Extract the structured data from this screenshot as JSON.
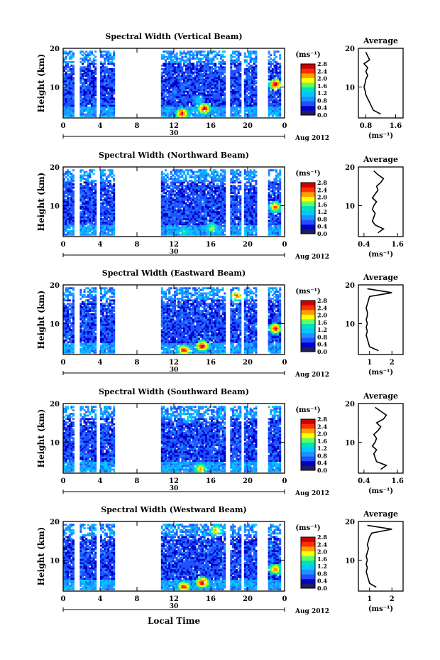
{
  "x_axis_label": "Local Time",
  "date_label": "Aug 2012",
  "colorbar_unit": "(ms⁻¹)",
  "colorbar_ticks": [
    "0.0",
    "0.4",
    "0.8",
    "1.2",
    "1.6",
    "2.0",
    "2.4",
    "2.8"
  ],
  "colors": {
    "colormap": [
      "#1e1e5a",
      "#0000c8",
      "#2050ff",
      "#1e90ff",
      "#00c8ff",
      "#00e0c0",
      "#60ff60",
      "#ffff00",
      "#ffa000",
      "#ff3000",
      "#d00000"
    ],
    "profile_line": "#000000"
  },
  "chart_data": [
    {
      "type": "heatmap",
      "title": "Spectral Width (Vertical Beam)",
      "ylabel": "Height (km)",
      "xlabel": "Local Time",
      "x_ticks": [
        "0",
        "4",
        "8",
        "12",
        "16",
        "20",
        "0"
      ],
      "y_ticks": [
        "10",
        "20"
      ],
      "date_tick": "30",
      "xlim": [
        0,
        24
      ],
      "ylim": [
        2,
        20
      ],
      "colorbar": {
        "label": "(ms⁻¹)",
        "range": [
          0,
          2.8
        ],
        "ticks": [
          "0.0",
          "0.4",
          "0.8",
          "1.2",
          "1.6",
          "2.0",
          "2.4",
          "2.8"
        ]
      },
      "data_intervals": [
        [
          0,
          1.2
        ],
        [
          1.8,
          3.6
        ],
        [
          4.0,
          5.6
        ],
        [
          10.6,
          17.6
        ],
        [
          18.1,
          19.3
        ],
        [
          19.6,
          21.0
        ],
        [
          22.2,
          23.6
        ]
      ],
      "enhanced_regions": [
        {
          "t": 12.8,
          "h": 3.0,
          "level": 2.6
        },
        {
          "t": 15.2,
          "h": 4.2,
          "level": 2.8
        },
        {
          "t": 22.9,
          "h": 10.5,
          "level": 2.8
        },
        {
          "t": 14.6,
          "h": 6.5,
          "level": 1.2
        }
      ],
      "average_profile": {
        "title": "Average",
        "xlabel": "(ms⁻¹)",
        "x_ticks": [
          "0.8",
          "1.6"
        ],
        "xlim": [
          0.6,
          1.8
        ],
        "y_ticks": [
          "10",
          "20"
        ],
        "height_km": [
          3,
          4,
          5,
          6,
          7,
          8,
          9,
          10,
          11,
          12,
          13,
          14,
          15,
          16,
          17,
          18,
          19
        ],
        "width_ms": [
          1.2,
          1.0,
          0.95,
          0.9,
          0.85,
          0.8,
          0.78,
          0.75,
          0.78,
          0.8,
          0.85,
          0.8,
          0.85,
          0.75,
          0.9,
          0.85,
          0.8
        ]
      }
    },
    {
      "type": "heatmap",
      "title": "Spectral Width (Northward Beam)",
      "ylabel": "Height (km)",
      "xlabel": "Local Time",
      "x_ticks": [
        "0",
        "4",
        "8",
        "12",
        "16",
        "20",
        "0"
      ],
      "y_ticks": [
        "10",
        "20"
      ],
      "date_tick": "30",
      "xlim": [
        0,
        24
      ],
      "ylim": [
        2,
        20
      ],
      "colorbar": {
        "label": "(ms⁻¹)",
        "range": [
          0,
          2.8
        ],
        "ticks": [
          "0.0",
          "0.4",
          "0.8",
          "1.2",
          "1.6",
          "2.0",
          "2.4",
          "2.8"
        ]
      },
      "data_intervals": [
        [
          0,
          1.2
        ],
        [
          1.8,
          3.6
        ],
        [
          4.0,
          5.6
        ],
        [
          10.6,
          17.6
        ],
        [
          18.1,
          19.3
        ],
        [
          19.6,
          21.0
        ],
        [
          22.2,
          23.6
        ]
      ],
      "enhanced_regions": [
        {
          "t": 13.0,
          "h": 3.2,
          "level": 1.6
        },
        {
          "t": 16.0,
          "h": 4.0,
          "level": 2.0
        },
        {
          "t": 22.9,
          "h": 9.5,
          "level": 2.4
        }
      ],
      "average_profile": {
        "title": "Average",
        "xlabel": "(ms⁻¹)",
        "x_ticks": [
          "0.4",
          "1.6"
        ],
        "xlim": [
          0.2,
          1.8
        ],
        "y_ticks": [
          "10",
          "20"
        ],
        "height_km": [
          3,
          4,
          5,
          6,
          7,
          8,
          9,
          10,
          11,
          12,
          13,
          14,
          15,
          16,
          17,
          18,
          19
        ],
        "width_ms": [
          0.9,
          1.1,
          0.8,
          0.7,
          0.75,
          0.8,
          0.7,
          0.75,
          0.85,
          0.7,
          0.8,
          0.9,
          0.85,
          1.0,
          1.1,
          0.9,
          0.75
        ]
      }
    },
    {
      "type": "heatmap",
      "title": "Spectral Width (Eastward Beam)",
      "ylabel": "Height (km)",
      "xlabel": "Local Time",
      "x_ticks": [
        "0",
        "4",
        "8",
        "12",
        "16",
        "20",
        "0"
      ],
      "y_ticks": [
        "10",
        "20"
      ],
      "date_tick": "30",
      "xlim": [
        0,
        24
      ],
      "ylim": [
        2,
        20
      ],
      "colorbar": {
        "label": "(ms⁻¹)",
        "range": [
          0,
          2.8
        ],
        "ticks": [
          "0.0",
          "0.4",
          "0.8",
          "1.2",
          "1.6",
          "2.0",
          "2.4",
          "2.8"
        ]
      },
      "data_intervals": [
        [
          0,
          1.2
        ],
        [
          1.8,
          3.6
        ],
        [
          4.0,
          5.6
        ],
        [
          10.6,
          17.6
        ],
        [
          18.1,
          19.3
        ],
        [
          19.6,
          21.0
        ],
        [
          22.2,
          23.6
        ]
      ],
      "enhanced_regions": [
        {
          "t": 13.0,
          "h": 3.0,
          "level": 2.6
        },
        {
          "t": 15.0,
          "h": 4.0,
          "level": 2.8
        },
        {
          "t": 22.9,
          "h": 8.5,
          "level": 2.6
        },
        {
          "t": 18.7,
          "h": 17.0,
          "level": 2.4
        }
      ],
      "average_profile": {
        "title": "Average",
        "xlabel": "(ms⁻¹)",
        "x_ticks": [
          "1",
          "2"
        ],
        "xlim": [
          0.5,
          2.5
        ],
        "y_ticks": [
          "10",
          "20"
        ],
        "height_km": [
          3,
          4,
          5,
          6,
          7,
          8,
          9,
          10,
          11,
          12,
          13,
          14,
          15,
          16,
          17,
          18,
          19
        ],
        "width_ms": [
          1.4,
          1.0,
          0.95,
          0.9,
          0.85,
          0.9,
          0.85,
          0.9,
          0.85,
          0.9,
          0.9,
          0.85,
          0.9,
          0.95,
          1.0,
          2.0,
          0.9
        ]
      }
    },
    {
      "type": "heatmap",
      "title": "Spectral Width (Southward Beam)",
      "ylabel": "Height (km)",
      "xlabel": "Local Time",
      "x_ticks": [
        "0",
        "4",
        "8",
        "12",
        "16",
        "20",
        "0"
      ],
      "y_ticks": [
        "10",
        "20"
      ],
      "date_tick": "30",
      "xlim": [
        0,
        24
      ],
      "ylim": [
        2,
        20
      ],
      "colorbar": {
        "label": "(ms⁻¹)",
        "range": [
          0,
          2.8
        ],
        "ticks": [
          "0.0",
          "0.4",
          "0.8",
          "1.2",
          "1.6",
          "2.0",
          "2.4",
          "2.8"
        ]
      },
      "data_intervals": [
        [
          0,
          1.2
        ],
        [
          1.8,
          3.6
        ],
        [
          4.0,
          5.6
        ],
        [
          10.6,
          17.6
        ],
        [
          18.1,
          19.3
        ],
        [
          19.6,
          21.0
        ],
        [
          22.2,
          23.6
        ]
      ],
      "enhanced_regions": [
        {
          "t": 14.8,
          "h": 3.0,
          "level": 2.2
        },
        {
          "t": 13.5,
          "h": 16.0,
          "level": 1.4
        }
      ],
      "average_profile": {
        "title": "Average",
        "xlabel": "(ms⁻¹)",
        "x_ticks": [
          "0.4",
          "1.6"
        ],
        "xlim": [
          0.2,
          1.8
        ],
        "y_ticks": [
          "10",
          "20"
        ],
        "height_km": [
          3,
          4,
          5,
          6,
          7,
          8,
          9,
          10,
          11,
          12,
          13,
          14,
          15,
          16,
          17,
          18,
          19
        ],
        "width_ms": [
          1.0,
          1.2,
          0.85,
          0.8,
          0.75,
          0.85,
          0.7,
          0.8,
          0.85,
          0.75,
          0.9,
          1.0,
          0.85,
          1.1,
          1.2,
          1.0,
          0.8
        ]
      }
    },
    {
      "type": "heatmap",
      "title": "Spectral Width (Westward Beam)",
      "ylabel": "Height (km)",
      "xlabel": "Local Time",
      "x_ticks": [
        "0",
        "4",
        "8",
        "12",
        "16",
        "20",
        "0"
      ],
      "y_ticks": [
        "10",
        "20"
      ],
      "date_tick": "30",
      "xlim": [
        0,
        24
      ],
      "ylim": [
        2,
        20
      ],
      "colorbar": {
        "label": "(ms⁻¹)",
        "range": [
          0,
          2.8
        ],
        "ticks": [
          "0.0",
          "0.4",
          "0.8",
          "1.2",
          "1.6",
          "2.0",
          "2.4",
          "2.8"
        ]
      },
      "data_intervals": [
        [
          0,
          1.2
        ],
        [
          1.8,
          3.6
        ],
        [
          4.0,
          5.6
        ],
        [
          10.6,
          17.6
        ],
        [
          18.1,
          19.3
        ],
        [
          19.6,
          21.0
        ],
        [
          22.2,
          23.6
        ]
      ],
      "enhanced_regions": [
        {
          "t": 13.0,
          "h": 3.0,
          "level": 2.6
        },
        {
          "t": 15.0,
          "h": 4.0,
          "level": 2.8
        },
        {
          "t": 22.9,
          "h": 7.5,
          "level": 2.4
        },
        {
          "t": 16.5,
          "h": 17.5,
          "level": 2.2
        }
      ],
      "average_profile": {
        "title": "Average",
        "xlabel": "(ms⁻¹)",
        "x_ticks": [
          "1",
          "2"
        ],
        "xlim": [
          0.5,
          2.5
        ],
        "y_ticks": [
          "10",
          "20"
        ],
        "height_km": [
          3,
          4,
          5,
          6,
          7,
          8,
          9,
          10,
          11,
          12,
          13,
          14,
          15,
          16,
          17,
          18,
          19
        ],
        "width_ms": [
          1.3,
          1.0,
          0.95,
          0.9,
          0.85,
          0.9,
          0.85,
          0.9,
          0.85,
          0.9,
          0.95,
          0.9,
          0.95,
          1.0,
          1.1,
          2.0,
          0.9
        ]
      }
    }
  ]
}
